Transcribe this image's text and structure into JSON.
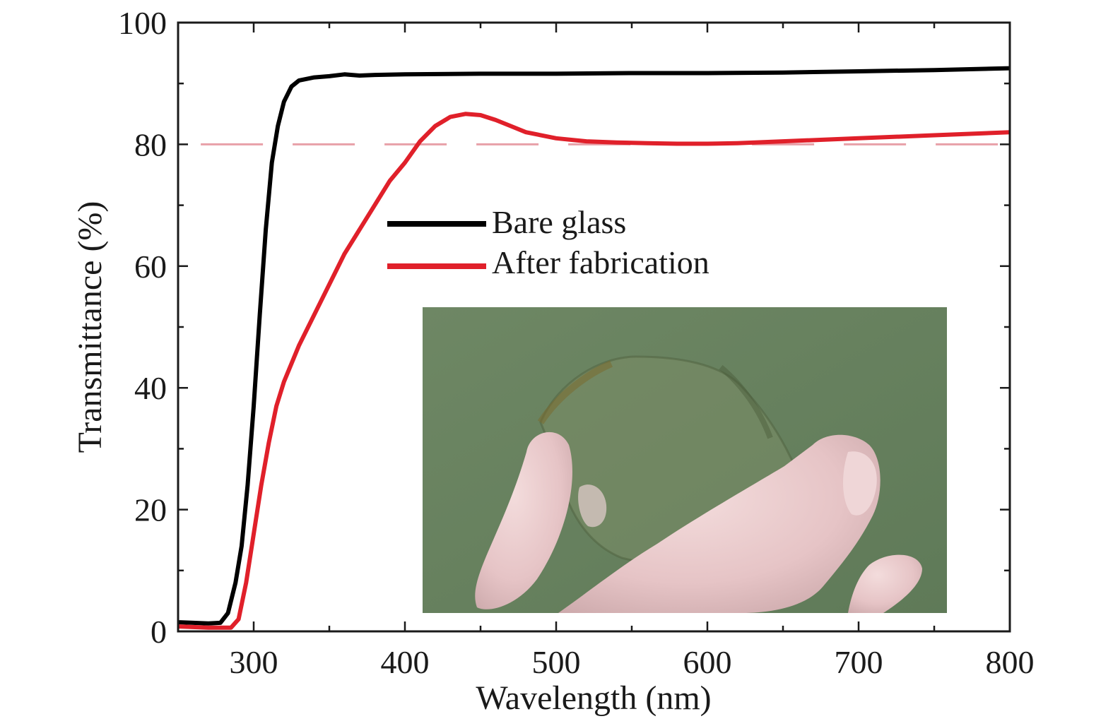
{
  "chart_data": {
    "type": "line",
    "xlabel": "Wavelength (nm)",
    "ylabel": "Transmittance (%)",
    "xlim": [
      250,
      800
    ],
    "ylim": [
      0,
      100
    ],
    "x_ticks": [
      300,
      400,
      500,
      600,
      700,
      800
    ],
    "y_ticks": [
      0,
      20,
      40,
      60,
      80,
      100
    ],
    "x_minor_step": 50,
    "y_minor_step": 10,
    "grid": false,
    "legend_position": "center",
    "series": [
      {
        "name": "Bare glass",
        "color": "#000000",
        "x": [
          250,
          260,
          270,
          278,
          283,
          288,
          292,
          296,
          300,
          304,
          308,
          312,
          316,
          320,
          325,
          330,
          340,
          350,
          360,
          370,
          380,
          400,
          450,
          500,
          550,
          600,
          650,
          700,
          750,
          800
        ],
        "y": [
          1.5,
          1.4,
          1.3,
          1.4,
          3,
          8,
          14,
          24,
          37,
          52,
          66,
          77,
          83,
          87,
          89.5,
          90.5,
          91,
          91.2,
          91.5,
          91.3,
          91.4,
          91.5,
          91.6,
          91.6,
          91.7,
          91.7,
          91.8,
          92,
          92.2,
          92.5
        ]
      },
      {
        "name": "After fabrication",
        "color": "#e0202a",
        "x": [
          250,
          270,
          285,
          290,
          295,
          300,
          305,
          310,
          315,
          320,
          330,
          340,
          350,
          360,
          370,
          380,
          390,
          400,
          410,
          420,
          430,
          440,
          450,
          460,
          470,
          480,
          500,
          520,
          540,
          560,
          580,
          600,
          620,
          650,
          700,
          750,
          800
        ],
        "y": [
          0.8,
          0.6,
          0.6,
          2,
          8,
          16,
          24,
          31,
          37,
          41,
          47,
          52,
          57,
          62,
          66,
          70,
          74,
          77,
          80.5,
          83,
          84.5,
          85,
          84.8,
          84,
          83,
          82,
          81,
          80.5,
          80.3,
          80.2,
          80.1,
          80.1,
          80.2,
          80.5,
          81,
          81.5,
          82
        ]
      }
    ],
    "reference_line": {
      "y": 80,
      "style": "dashed",
      "color": "#e8a0a8"
    },
    "inset": {
      "type": "photo",
      "icon": "flexible-film-photo"
    }
  }
}
